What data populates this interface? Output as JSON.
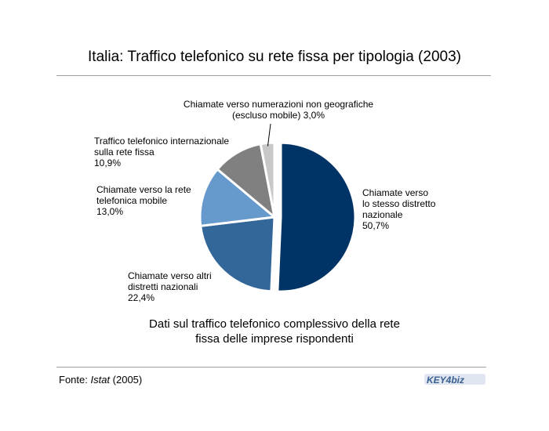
{
  "header": {
    "title": "Italia: Traffico telefonico su rete fissa per tipologia (2003)"
  },
  "chart_data": {
    "type": "pie",
    "title": "Italia: Traffico telefonico su rete fissa per tipologia (2003)",
    "subtitle": "Dati sul traffico telefonico complessivo della rete\nfissa delle imprese rispondenti",
    "slices": [
      {
        "name": "Chiamate verso\nlo stesso distretto\nnazionale",
        "value": 50.7,
        "value_label": "50,7%",
        "color": "#003366",
        "exploded": true
      },
      {
        "name": "Chiamate verso altri\ndistretti nazionali",
        "value": 22.4,
        "value_label": "22,4%",
        "color": "#336699",
        "exploded": false
      },
      {
        "name": "Chiamate verso la rete\ntelefonica mobile",
        "value": 13.0,
        "value_label": "13,0%",
        "color": "#6699cc",
        "exploded": false
      },
      {
        "name": "Traffico telefonico internazionale\nsulla rete fissa",
        "value": 10.9,
        "value_label": "10,9%",
        "color": "#808080",
        "exploded": false
      },
      {
        "name": "Chiamate verso numerazioni non geografiche\n(escluso mobile)",
        "value": 3.0,
        "value_label": "3,0%",
        "color": "#c8c8c8",
        "exploded": false
      }
    ]
  },
  "labels": {
    "slice0": "Chiamate verso\nlo stesso distretto\nnazionale\n50,7%",
    "slice1": "Chiamate verso altri\ndistretti nazionali\n22,4%",
    "slice2": "Chiamate verso la rete\ntelefonica mobile\n13,0%",
    "slice3": "Traffico telefonico internazionale\nsulla rete fissa\n10,9%",
    "slice4": "Chiamate verso numerazioni non geografiche\n(escluso mobile) 3,0%"
  },
  "footer": {
    "source_prefix": "Fonte: ",
    "source_name": "Istat",
    "source_year": " (2005)",
    "logo_text": "KEY4biz"
  }
}
